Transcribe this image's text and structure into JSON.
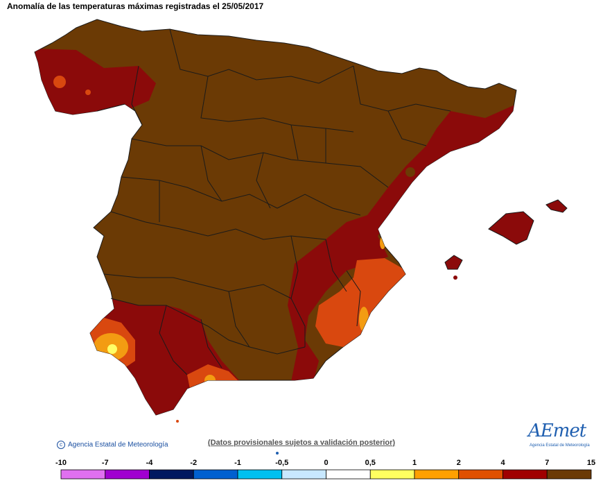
{
  "title": "Anomalía de las temperaturas máximas registradas el 25/05/2017",
  "copyright_text": "Agencia Estatal de Meteorología",
  "disclaimer": "(Datos provisionales sujetos a validación posterior)",
  "logo": {
    "word": "AEmet",
    "subtitle": "Agencia Estatal de Meteorología"
  },
  "legend": {
    "labels": [
      "-10",
      "-7",
      "-4",
      "-2",
      "-1",
      "-0,5",
      "0",
      "0,5",
      "1",
      "2",
      "4",
      "7",
      "15"
    ],
    "colors": [
      "#e070f0",
      "#a000d0",
      "#001860",
      "#0060d0",
      "#00c0f0",
      "#c8e8ff",
      "#ffffff",
      "#ffff60",
      "#ffa000",
      "#e05000",
      "#a00000",
      "#6b3a05"
    ]
  },
  "map_colors": {
    "brown": "#6b3a05",
    "darkred": "#8b0a0a",
    "orange": "#d9480f",
    "amber": "#f39c12",
    "yellow": "#ffff66",
    "border": "#1a1a1a"
  }
}
